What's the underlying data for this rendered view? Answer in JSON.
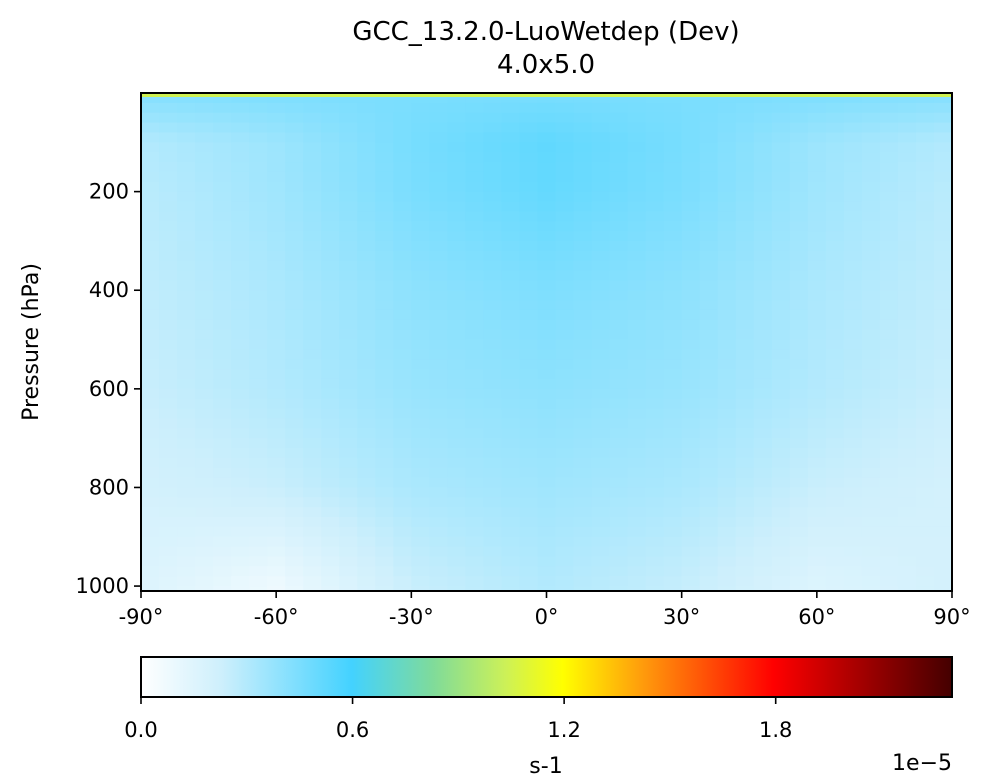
{
  "chart_data": {
    "type": "heatmap",
    "title": "GCC_13.2.0-LuoWetdep (Dev)",
    "subtitle": "4.0x5.0",
    "ylabel": "Pressure (hPa)",
    "xlabel": "",
    "x_ticks": [
      "-90°",
      "-60°",
      "-30°",
      "0°",
      "30°",
      "60°",
      "90°"
    ],
    "x_tick_values": [
      -90,
      -60,
      -30,
      0,
      30,
      60,
      90
    ],
    "xlim": [
      -90,
      90
    ],
    "y_ticks": [
      "200",
      "400",
      "600",
      "800",
      "1000"
    ],
    "y_tick_values": [
      200,
      400,
      600,
      800,
      1000
    ],
    "ylim": [
      1010,
      0
    ],
    "y_inverted": true,
    "colorbar": {
      "label": "s-1",
      "multiplier": "1e−5",
      "ticks": [
        "0.0",
        "0.6",
        "1.2",
        "1.8"
      ],
      "tick_values": [
        0.0,
        0.6,
        1.2,
        1.8
      ],
      "range": [
        0.0,
        2.3
      ],
      "colormap": "WhGrYlRd"
    },
    "field": {
      "units": "1e-5 s-1",
      "latitudes": [
        -90,
        -60,
        -30,
        0,
        30,
        60,
        90
      ],
      "pressures": [
        5,
        100,
        200,
        400,
        600,
        800,
        1000
      ],
      "values": [
        [
          0.42,
          0.44,
          0.45,
          0.46,
          0.45,
          0.44,
          0.42
        ],
        [
          0.3,
          0.36,
          0.46,
          0.52,
          0.46,
          0.36,
          0.3
        ],
        [
          0.28,
          0.35,
          0.45,
          0.51,
          0.45,
          0.35,
          0.28
        ],
        [
          0.26,
          0.32,
          0.4,
          0.44,
          0.4,
          0.32,
          0.26
        ],
        [
          0.24,
          0.3,
          0.37,
          0.4,
          0.37,
          0.3,
          0.24
        ],
        [
          0.2,
          0.24,
          0.32,
          0.35,
          0.32,
          0.24,
          0.2
        ],
        [
          0.16,
          0.08,
          0.24,
          0.3,
          0.25,
          0.16,
          0.2
        ]
      ]
    }
  }
}
